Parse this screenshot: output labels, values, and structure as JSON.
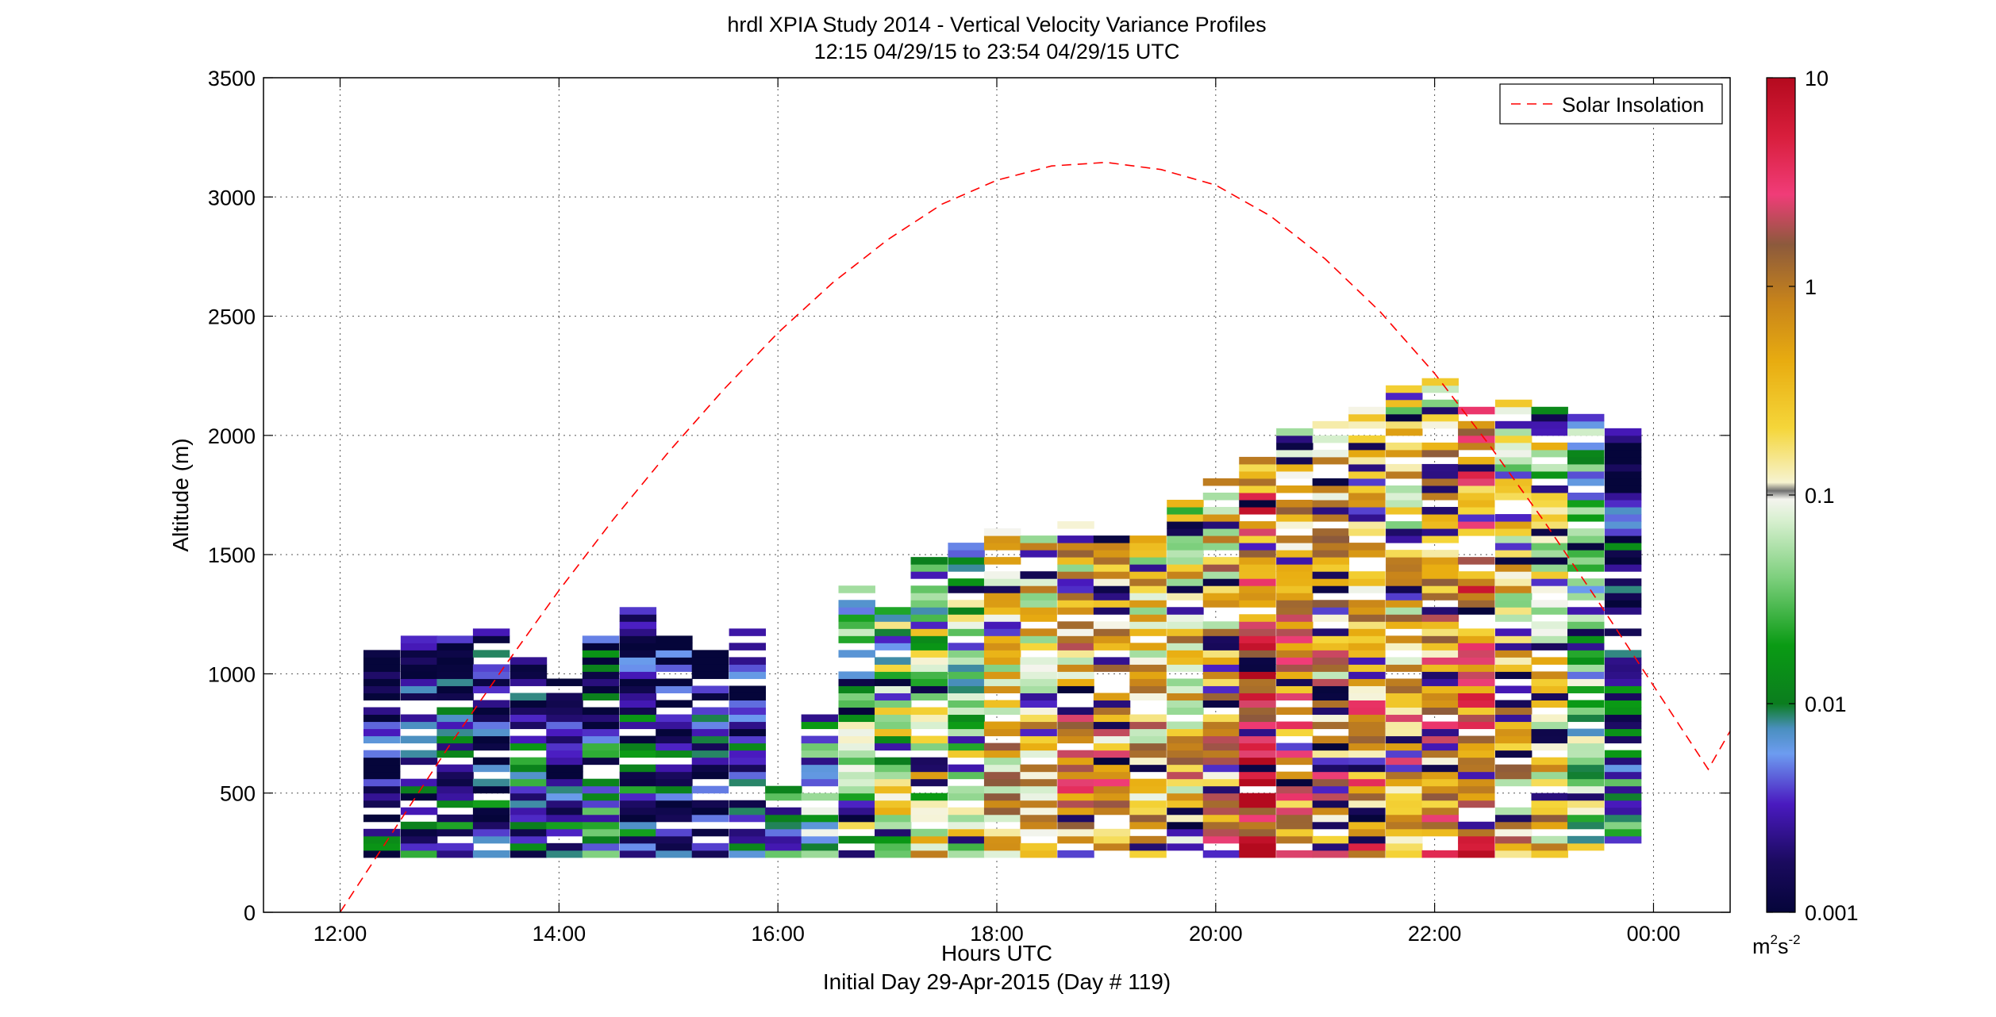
{
  "chart_data": {
    "type": "heatmap",
    "title": "hrdl XPIA Study 2014 - Vertical Velocity Variance Profiles",
    "subtitle": "12:15 04/29/15 to 23:54 04/29/15  UTC",
    "xlabel": "Hours UTC",
    "xlabel2": "Initial Day 29-Apr-2015 (Day # 119)",
    "ylabel": "Altitude (m)",
    "xlim": [
      11.3,
      24.7
    ],
    "ylim": [
      0,
      3500
    ],
    "x_ticks": [
      12,
      14,
      16,
      18,
      20,
      22,
      24
    ],
    "x_tick_labels": [
      "12:00",
      "14:00",
      "16:00",
      "18:00",
      "20:00",
      "22:00",
      "00:00"
    ],
    "y_ticks": [
      0,
      500,
      1000,
      1500,
      2000,
      2500,
      3000,
      3500
    ],
    "y_tick_labels": [
      "0",
      "500",
      "1000",
      "1500",
      "2000",
      "2500",
      "3000",
      "3500"
    ],
    "grid": true,
    "legend": {
      "placement": "top-right",
      "entries": [
        "Solar Insolation"
      ]
    },
    "colorbar": {
      "scale": "log",
      "range": [
        0.001,
        10
      ],
      "ticks": [
        0.001,
        0.01,
        0.1,
        1,
        10
      ],
      "tick_labels": [
        "0.001",
        "0.01",
        "0.1",
        "1",
        "10"
      ],
      "unit_base": "m",
      "unit_exp1": "2",
      "unit_mid": "s",
      "unit_exp2": "-2"
    },
    "series": [
      {
        "name": "Solar Insolation",
        "style": "dashed",
        "color": "#ff0000",
        "x": [
          12.0,
          12.5,
          13.0,
          13.5,
          14.0,
          14.5,
          15.0,
          15.5,
          16.0,
          16.5,
          17.0,
          17.5,
          18.0,
          18.5,
          19.0,
          19.5,
          20.0,
          20.5,
          21.0,
          21.5,
          22.0,
          22.5,
          23.0,
          23.5,
          24.0,
          24.5,
          24.7
        ],
        "y": [
          0,
          350,
          700,
          1030,
          1350,
          1650,
          1930,
          2190,
          2430,
          2640,
          2820,
          2970,
          3070,
          3130,
          3145,
          3115,
          3050,
          2920,
          2740,
          2520,
          2260,
          1960,
          1640,
          1300,
          950,
          600,
          760
        ]
      }
    ],
    "profile_interval_hours": 0.333,
    "profiles": [
      {
        "t": 12.38,
        "base": 230,
        "top": 1080,
        "level": 0.003
      },
      {
        "t": 12.72,
        "base": 230,
        "top": 1160,
        "level": 0.004
      },
      {
        "t": 13.05,
        "base": 230,
        "top": 1150,
        "level": 0.006
      },
      {
        "t": 13.38,
        "base": 230,
        "top": 1210,
        "level": 0.005
      },
      {
        "t": 13.72,
        "base": 230,
        "top": 1050,
        "level": 0.008
      },
      {
        "t": 14.05,
        "base": 230,
        "top": 1040,
        "level": 0.005
      },
      {
        "t": 14.38,
        "base": 230,
        "top": 1140,
        "level": 0.01
      },
      {
        "t": 14.72,
        "base": 230,
        "top": 1280,
        "level": 0.006
      },
      {
        "t": 15.05,
        "base": 230,
        "top": 1160,
        "level": 0.005
      },
      {
        "t": 15.38,
        "base": 230,
        "top": 1080,
        "level": 0.004
      },
      {
        "t": 15.72,
        "base": 230,
        "top": 1190,
        "level": 0.008
      },
      {
        "t": 16.05,
        "base": 230,
        "top": 530,
        "level": 0.02
      },
      {
        "t": 16.38,
        "base": 230,
        "top": 830,
        "level": 0.03
      },
      {
        "t": 16.72,
        "base": 230,
        "top": 1360,
        "level": 0.05
      },
      {
        "t": 17.05,
        "base": 230,
        "top": 1270,
        "level": 0.1
      },
      {
        "t": 17.38,
        "base": 230,
        "top": 1490,
        "level": 0.15
      },
      {
        "t": 17.72,
        "base": 230,
        "top": 1550,
        "level": 0.1
      },
      {
        "t": 18.05,
        "base": 230,
        "top": 1610,
        "level": 0.5
      },
      {
        "t": 18.38,
        "base": 230,
        "top": 1560,
        "level": 0.6
      },
      {
        "t": 18.72,
        "base": 230,
        "top": 1640,
        "level": 0.8
      },
      {
        "t": 19.05,
        "base": 230,
        "top": 1560,
        "level": 0.7
      },
      {
        "t": 19.38,
        "base": 230,
        "top": 1580,
        "level": 0.6
      },
      {
        "t": 19.72,
        "base": 230,
        "top": 1730,
        "level": 0.5
      },
      {
        "t": 20.05,
        "base": 230,
        "top": 1800,
        "level": 0.8
      },
      {
        "t": 20.38,
        "base": 230,
        "top": 1910,
        "level": 4.0
      },
      {
        "t": 20.72,
        "base": 230,
        "top": 2060,
        "level": 1.0
      },
      {
        "t": 21.05,
        "base": 230,
        "top": 2090,
        "level": 0.7
      },
      {
        "t": 21.38,
        "base": 230,
        "top": 2110,
        "level": 0.9
      },
      {
        "t": 21.72,
        "base": 230,
        "top": 2240,
        "level": 0.6
      },
      {
        "t": 22.05,
        "base": 230,
        "top": 2240,
        "level": 0.8
      },
      {
        "t": 22.38,
        "base": 230,
        "top": 2100,
        "level": 2.5
      },
      {
        "t": 22.72,
        "base": 230,
        "top": 2150,
        "level": 0.4
      },
      {
        "t": 23.05,
        "base": 230,
        "top": 2100,
        "level": 0.3
      },
      {
        "t": 23.38,
        "base": 230,
        "top": 2090,
        "level": 0.05
      },
      {
        "t": 23.72,
        "base": 230,
        "top": 2020,
        "level": 0.01
      }
    ]
  }
}
